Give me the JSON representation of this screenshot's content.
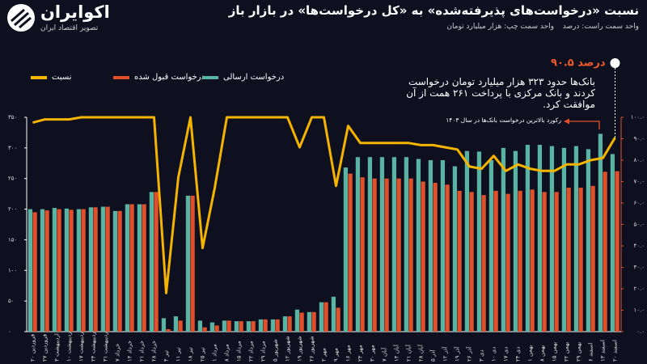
{
  "brand": {
    "name": "اکوایران",
    "tagline": "تصویر اقتصاد ایران"
  },
  "chart_data": {
    "type": "bar",
    "title": "نسبت «درخواست‌های پذیرفته‌شده» به «کل درخواست‌ها» در بازار باز",
    "subtitle_right": "واحد سمت راست: درصد",
    "subtitle_left": "واحد سمت چپ: هزار میلیارد تومان",
    "categories": [
      "۲۰ فروردین",
      "۲۷ فروردین",
      "۳ اردیبهشت",
      "۱۰ اردیبهشت",
      "۱۷ اردیبهشت",
      "۲۴ اردیبهشت",
      "۳۱ اردیبهشت",
      "۷ خرداد",
      "۱۴ خرداد",
      "۲۱ خرداد",
      "۲۸ خرداد",
      "۴ تیر",
      "۱۱ تیر",
      "۱۸ تیر",
      "۲۵ تیر",
      "۱ مرداد",
      "۸ مرداد",
      "۱۵ مرداد",
      "۲۲ مرداد",
      "۲۹ مرداد",
      "۵ شهریور",
      "۱۲ شهریور",
      "۱۹ شهریور",
      "۲۶ شهریور",
      "۲ مهر",
      "۹ مهر",
      "۱۶ مهر",
      "۲۳ مهر",
      "۳۰ مهر",
      "۷ آبان",
      "۱۴ آبان",
      "۲۱ آبان",
      "۲۸ آبان",
      "۵ آذر",
      "۱۲ آذر",
      "۱۹ آذر",
      "۲۶ آذر",
      "۳ دی",
      "۱۰ دی",
      "۱۷ دی",
      "۲۴ دی",
      "۱ بهمن",
      "۸ بهمن",
      "۱۵ بهمن",
      "۲۲ بهمن",
      "۲۹ بهمن",
      "۶ اسفند",
      "۱۳ اسفند",
      "۲۰ اسفند"
    ],
    "series": [
      {
        "name": "درخواست ارسالی",
        "color": "#5ab4a3",
        "values": [
          200,
          200,
          202,
          201,
          200,
          203,
          204,
          197,
          208,
          208,
          228,
          22,
          25,
          222,
          18,
          15,
          18,
          17,
          17,
          20,
          20,
          25,
          36,
          32,
          48,
          57,
          268,
          285,
          285,
          285,
          285,
          285,
          282,
          280,
          280,
          270,
          295,
          294,
          280,
          300,
          295,
          305,
          305,
          303,
          300,
          303,
          298,
          323,
          290
        ]
      },
      {
        "name": "درخواست قبول شده",
        "color": "#e0502a",
        "values": [
          195,
          198,
          200,
          199,
          200,
          203,
          204,
          197,
          208,
          208,
          228,
          4,
          18,
          222,
          7,
          10,
          18,
          17,
          17,
          20,
          20,
          25,
          31,
          32,
          48,
          39,
          258,
          252,
          250,
          250,
          250,
          250,
          245,
          243,
          240,
          230,
          228,
          223,
          230,
          225,
          230,
          232,
          228,
          228,
          235,
          235,
          238,
          261,
          262
        ]
      },
      {
        "name": "نسبت",
        "type": "line",
        "axis": "y2",
        "color": "#f5b400",
        "values": [
          97.5,
          99,
          99,
          99,
          100,
          100,
          100,
          100,
          100,
          100,
          100,
          18,
          72,
          100,
          39,
          67,
          100,
          100,
          100,
          100,
          100,
          100,
          86,
          100,
          100,
          68,
          96,
          88,
          88,
          88,
          88,
          88,
          87,
          87,
          86,
          85,
          77,
          76,
          82,
          75,
          78,
          76,
          75,
          75,
          78,
          78,
          80,
          81,
          90.5
        ],
        "value_labels": [
          null,
          null,
          null,
          null,
          null,
          null,
          null,
          null,
          null,
          null,
          null,
          null,
          null,
          null,
          null,
          null,
          null,
          null,
          null,
          null,
          null,
          null,
          null,
          null,
          null,
          null,
          null,
          null,
          null,
          null,
          null,
          null,
          null,
          null,
          null,
          null,
          null,
          null,
          null,
          null,
          null,
          null,
          null,
          null,
          null,
          null,
          null,
          null,
          "۹۰.۵ درصد"
        ]
      }
    ],
    "ylim": [
      0,
      350
    ],
    "yticks": [
      {
        "value": 0,
        "label": "۰"
      },
      {
        "value": 50,
        "label": "۵۰"
      },
      {
        "value": 100,
        "label": "۱۰۰"
      },
      {
        "value": 150,
        "label": "۱۵۰"
      },
      {
        "value": 200,
        "label": "۲۰۰"
      },
      {
        "value": 250,
        "label": "۲۵۰"
      },
      {
        "value": 300,
        "label": "۳۰۰"
      },
      {
        "value": 350,
        "label": "۳۵۰"
      }
    ],
    "y2lim": [
      0,
      100
    ],
    "y2ticks": [
      {
        "value": 0,
        "label": "۰.۰"
      },
      {
        "value": 10,
        "label": "۱۰.۰"
      },
      {
        "value": 20,
        "label": "۲۰.۰"
      },
      {
        "value": 30,
        "label": "۳۰.۰"
      },
      {
        "value": 40,
        "label": "۴۰.۰"
      },
      {
        "value": 50,
        "label": "۵۰.۰"
      },
      {
        "value": 60,
        "label": "۶۰.۰"
      },
      {
        "value": 70,
        "label": "۷۰.۰"
      },
      {
        "value": 80,
        "label": "۸۰.۰"
      },
      {
        "value": 90,
        "label": "۹۰.۰"
      },
      {
        "value": 100,
        "label": "۱۰۰.۰"
      }
    ],
    "annotations": [
      {
        "text": "بانک‌ها حدود ۳۲۳ هزار میلیارد تومان درخواست کردند و بانک مرکزی با پرداخت ۲۶۱ همت از آن موافقت کرد."
      },
      {
        "text": "رکورد بالاترین درخواست بانک‌ها در سال ۱۴۰۳"
      }
    ],
    "grid": false
  }
}
